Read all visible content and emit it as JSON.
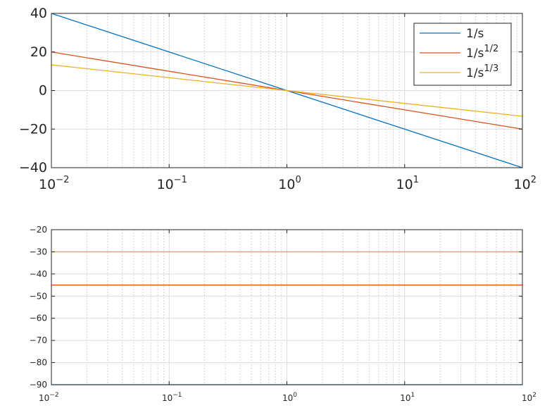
{
  "chart_data": [
    {
      "type": "line",
      "title": "",
      "xlabel": "",
      "ylabel": "",
      "x_scale": "log",
      "xlim": [
        0.01,
        100
      ],
      "ylim": [
        -40,
        40
      ],
      "grid": true,
      "minor_grid_x": true,
      "legend_position": "top-right",
      "x_ticks": [
        {
          "base": "10",
          "exp": "-2",
          "value": 0.01
        },
        {
          "base": "10",
          "exp": "-1",
          "value": 0.1
        },
        {
          "base": "10",
          "exp": "0",
          "value": 1
        },
        {
          "base": "10",
          "exp": "1",
          "value": 10
        },
        {
          "base": "10",
          "exp": "2",
          "value": 100
        }
      ],
      "y_ticks": [
        "-40",
        "-20",
        "0",
        "20",
        "40"
      ],
      "y_tick_values": [
        -40,
        -20,
        0,
        20,
        40
      ],
      "series": [
        {
          "name": "1/s",
          "legend_base": "1/s",
          "legend_sup": "",
          "color": "#0072BD",
          "x": [
            0.01,
            100
          ],
          "y": [
            40,
            -40
          ]
        },
        {
          "name": "1/s^(1/2)",
          "legend_base": "1/s",
          "legend_sup": "1/2",
          "color": "#D95319",
          "x": [
            0.01,
            100
          ],
          "y": [
            20,
            -20
          ]
        },
        {
          "name": "1/s^(1/3)",
          "legend_base": "1/s",
          "legend_sup": "1/3",
          "color": "#EDB120",
          "x": [
            0.01,
            100
          ],
          "y": [
            13.33,
            -13.33
          ]
        }
      ]
    },
    {
      "type": "line",
      "title": "",
      "xlabel": "",
      "ylabel": "",
      "x_scale": "log",
      "xlim": [
        0.01,
        100
      ],
      "ylim": [
        -90,
        -20
      ],
      "grid": true,
      "minor_grid_x": true,
      "x_ticks": [
        {
          "base": "10",
          "exp": "-2",
          "value": 0.01
        },
        {
          "base": "10",
          "exp": "-1",
          "value": 0.1
        },
        {
          "base": "10",
          "exp": "0",
          "value": 1
        },
        {
          "base": "10",
          "exp": "1",
          "value": 10
        },
        {
          "base": "10",
          "exp": "2",
          "value": 100
        }
      ],
      "y_ticks": [
        "-90",
        "-80",
        "-70",
        "-60",
        "-50",
        "-40",
        "-30",
        "-20"
      ],
      "y_tick_values": [
        -90,
        -80,
        -70,
        -60,
        -50,
        -40,
        -30,
        -20
      ],
      "series": [
        {
          "color": "#0072BD",
          "x": [
            0.01,
            100
          ],
          "y": [
            -90,
            -90
          ]
        },
        {
          "color": "#D95319",
          "x": [
            0.01,
            100
          ],
          "y": [
            -45,
            -45
          ]
        },
        {
          "color": "#EDB120",
          "x": [
            0.01,
            100
          ],
          "y": [
            -30,
            -30
          ]
        }
      ]
    }
  ]
}
